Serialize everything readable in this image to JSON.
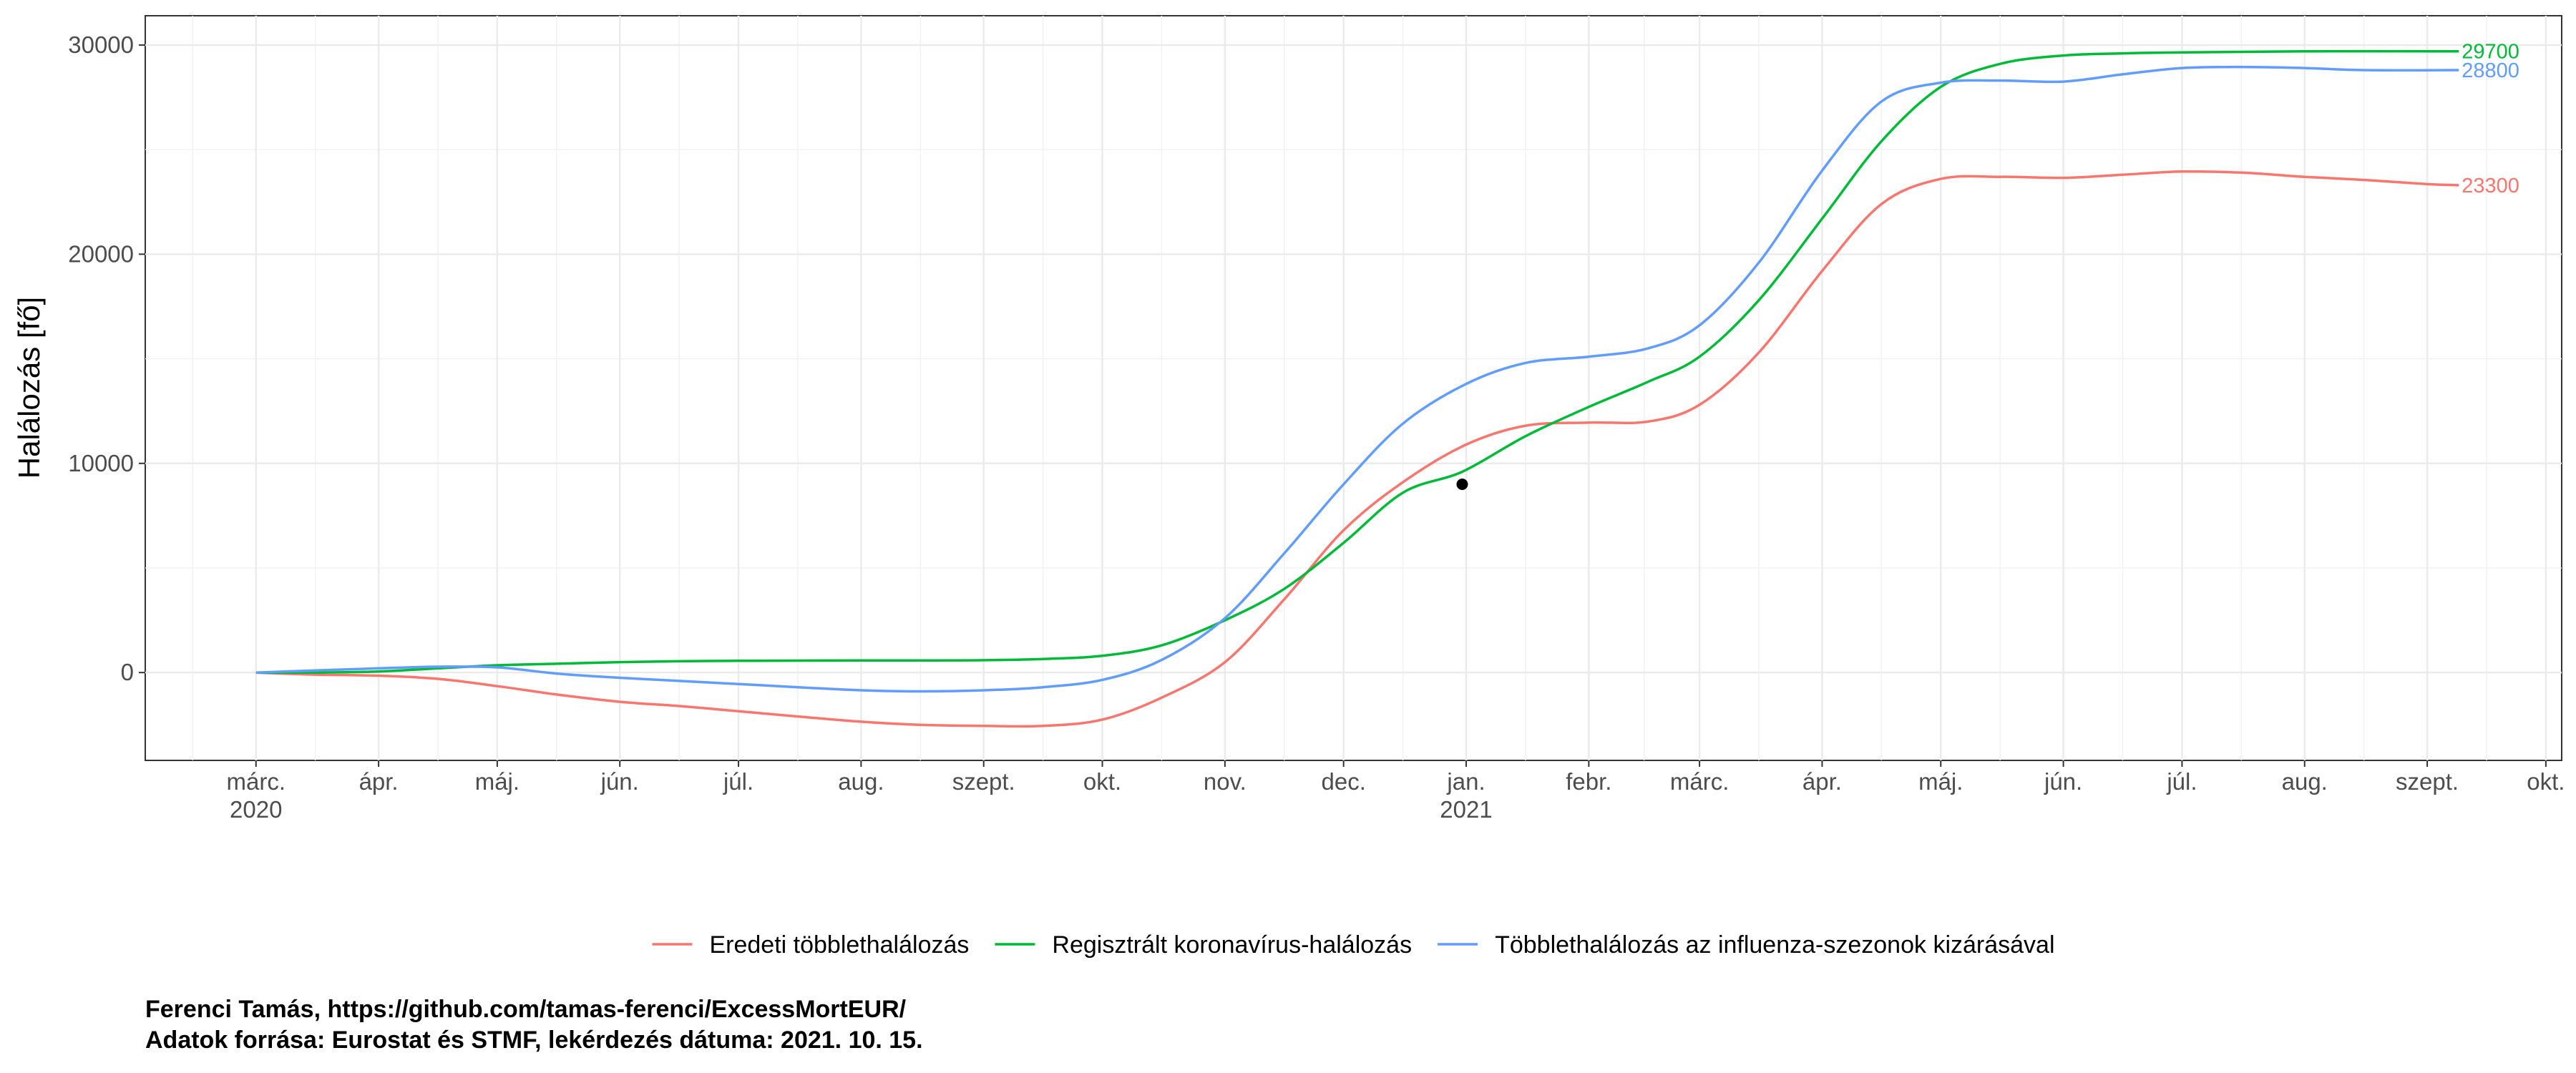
{
  "chart_data": {
    "type": "line",
    "title": "",
    "xlabel": "",
    "ylabel": "Halálozás [fő]",
    "ylim": [
      -4200,
      31400
    ],
    "yticks": [
      0,
      10000,
      20000,
      30000
    ],
    "x_start": "2020-02-02",
    "x_end": "2021-10-05",
    "x_ticks": [
      {
        "date": "2020-03-01",
        "label": "márc.",
        "sublabel": "2020"
      },
      {
        "date": "2020-04-01",
        "label": "ápr.",
        "sublabel": ""
      },
      {
        "date": "2020-05-01",
        "label": "máj.",
        "sublabel": ""
      },
      {
        "date": "2020-06-01",
        "label": "jún.",
        "sublabel": ""
      },
      {
        "date": "2020-07-01",
        "label": "júl.",
        "sublabel": ""
      },
      {
        "date": "2020-08-01",
        "label": "aug.",
        "sublabel": ""
      },
      {
        "date": "2020-09-01",
        "label": "szept.",
        "sublabel": ""
      },
      {
        "date": "2020-10-01",
        "label": "okt.",
        "sublabel": ""
      },
      {
        "date": "2020-11-01",
        "label": "nov.",
        "sublabel": ""
      },
      {
        "date": "2020-12-01",
        "label": "dec.",
        "sublabel": ""
      },
      {
        "date": "2021-01-01",
        "label": "jan.",
        "sublabel": "2021"
      },
      {
        "date": "2021-02-01",
        "label": "febr.",
        "sublabel": ""
      },
      {
        "date": "2021-03-01",
        "label": "márc.",
        "sublabel": ""
      },
      {
        "date": "2021-04-01",
        "label": "ápr.",
        "sublabel": ""
      },
      {
        "date": "2021-05-01",
        "label": "máj.",
        "sublabel": ""
      },
      {
        "date": "2021-06-01",
        "label": "jún.",
        "sublabel": ""
      },
      {
        "date": "2021-07-01",
        "label": "júl.",
        "sublabel": ""
      },
      {
        "date": "2021-08-01",
        "label": "aug.",
        "sublabel": ""
      },
      {
        "date": "2021-09-01",
        "label": "szept.",
        "sublabel": ""
      },
      {
        "date": "2021-10-01",
        "label": "okt.",
        "sublabel": ""
      }
    ],
    "grid": true,
    "legend_position": "bottom",
    "series": [
      {
        "name": "Eredeti többlethalálozás",
        "color": "#F8766D",
        "end_label": "23300",
        "points": [
          [
            "2020-03-01",
            0
          ],
          [
            "2020-03-16",
            -100
          ],
          [
            "2020-04-01",
            -150
          ],
          [
            "2020-04-16",
            -300
          ],
          [
            "2020-05-01",
            -650
          ],
          [
            "2020-05-16",
            -1050
          ],
          [
            "2020-06-01",
            -1400
          ],
          [
            "2020-06-16",
            -1600
          ],
          [
            "2020-07-01",
            -1850
          ],
          [
            "2020-07-16",
            -2100
          ],
          [
            "2020-08-01",
            -2350
          ],
          [
            "2020-08-16",
            -2500
          ],
          [
            "2020-09-01",
            -2550
          ],
          [
            "2020-09-16",
            -2550
          ],
          [
            "2020-10-01",
            -2250
          ],
          [
            "2020-10-16",
            -1200
          ],
          [
            "2020-11-01",
            500
          ],
          [
            "2020-11-16",
            3500
          ],
          [
            "2020-12-01",
            6800
          ],
          [
            "2020-12-16",
            9100
          ],
          [
            "2021-01-01",
            10900
          ],
          [
            "2021-01-16",
            11800
          ],
          [
            "2021-02-01",
            11950
          ],
          [
            "2021-02-16",
            12000
          ],
          [
            "2021-03-01",
            12800
          ],
          [
            "2021-03-16",
            15300
          ],
          [
            "2021-04-01",
            19200
          ],
          [
            "2021-04-16",
            22400
          ],
          [
            "2021-05-01",
            23600
          ],
          [
            "2021-05-16",
            23700
          ],
          [
            "2021-06-01",
            23650
          ],
          [
            "2021-06-16",
            23800
          ],
          [
            "2021-07-01",
            23950
          ],
          [
            "2021-07-16",
            23900
          ],
          [
            "2021-08-01",
            23700
          ],
          [
            "2021-08-16",
            23550
          ],
          [
            "2021-09-01",
            23350
          ],
          [
            "2021-09-09",
            23300
          ]
        ]
      },
      {
        "name": "Regisztrált koronavírus-halálozás",
        "color": "#00BA38",
        "end_label": "29700",
        "points": [
          [
            "2020-03-01",
            0
          ],
          [
            "2020-03-16",
            0
          ],
          [
            "2020-04-01",
            50
          ],
          [
            "2020-04-16",
            200
          ],
          [
            "2020-05-01",
            350
          ],
          [
            "2020-05-16",
            420
          ],
          [
            "2020-06-01",
            500
          ],
          [
            "2020-06-16",
            540
          ],
          [
            "2020-07-01",
            560
          ],
          [
            "2020-07-16",
            570
          ],
          [
            "2020-08-01",
            580
          ],
          [
            "2020-08-16",
            580
          ],
          [
            "2020-09-01",
            590
          ],
          [
            "2020-09-16",
            650
          ],
          [
            "2020-10-01",
            800
          ],
          [
            "2020-10-16",
            1300
          ],
          [
            "2020-11-01",
            2500
          ],
          [
            "2020-11-16",
            4000
          ],
          [
            "2020-12-01",
            6200
          ],
          [
            "2020-12-16",
            8600
          ],
          [
            "2020-12-31",
            9600
          ],
          [
            "2021-01-16",
            11300
          ],
          [
            "2021-02-01",
            12700
          ],
          [
            "2021-02-16",
            13900
          ],
          [
            "2021-03-01",
            15100
          ],
          [
            "2021-03-16",
            17800
          ],
          [
            "2021-04-01",
            21700
          ],
          [
            "2021-04-16",
            25400
          ],
          [
            "2021-05-01",
            28000
          ],
          [
            "2021-05-16",
            29100
          ],
          [
            "2021-06-01",
            29500
          ],
          [
            "2021-06-16",
            29600
          ],
          [
            "2021-07-01",
            29650
          ],
          [
            "2021-08-01",
            29700
          ],
          [
            "2021-09-09",
            29700
          ]
        ]
      },
      {
        "name": "Többlethalálozás az influenza-szezonok kizárásával",
        "color": "#619CFF",
        "end_label": "28800",
        "points": [
          [
            "2020-03-01",
            0
          ],
          [
            "2020-03-16",
            100
          ],
          [
            "2020-04-01",
            200
          ],
          [
            "2020-04-16",
            280
          ],
          [
            "2020-05-01",
            250
          ],
          [
            "2020-05-16",
            -50
          ],
          [
            "2020-06-01",
            -250
          ],
          [
            "2020-06-16",
            -400
          ],
          [
            "2020-07-01",
            -550
          ],
          [
            "2020-07-16",
            -700
          ],
          [
            "2020-08-01",
            -850
          ],
          [
            "2020-08-16",
            -900
          ],
          [
            "2020-09-01",
            -850
          ],
          [
            "2020-09-16",
            -700
          ],
          [
            "2020-10-01",
            -350
          ],
          [
            "2020-10-16",
            600
          ],
          [
            "2020-11-01",
            2600
          ],
          [
            "2020-11-16",
            5700
          ],
          [
            "2020-12-01",
            9000
          ],
          [
            "2020-12-16",
            11900
          ],
          [
            "2021-01-01",
            13800
          ],
          [
            "2021-01-16",
            14800
          ],
          [
            "2021-02-01",
            15100
          ],
          [
            "2021-02-16",
            15500
          ],
          [
            "2021-03-01",
            16600
          ],
          [
            "2021-03-16",
            19600
          ],
          [
            "2021-04-01",
            24000
          ],
          [
            "2021-04-16",
            27300
          ],
          [
            "2021-05-01",
            28200
          ],
          [
            "2021-05-16",
            28300
          ],
          [
            "2021-06-01",
            28250
          ],
          [
            "2021-06-16",
            28600
          ],
          [
            "2021-07-01",
            28900
          ],
          [
            "2021-07-16",
            28950
          ],
          [
            "2021-08-01",
            28900
          ],
          [
            "2021-08-16",
            28800
          ],
          [
            "2021-09-09",
            28800
          ]
        ]
      }
    ],
    "points": [
      {
        "date": "2020-12-31",
        "value": 9000,
        "color": "#000000"
      }
    ]
  },
  "caption": {
    "line1": "Ferenci Tamás, https://github.com/tamas-ferenci/ExcessMortEUR/",
    "line2": "Adatok forrása: Eurostat és STMF, lekérdezés dátuma: 2021. 10. 15."
  }
}
